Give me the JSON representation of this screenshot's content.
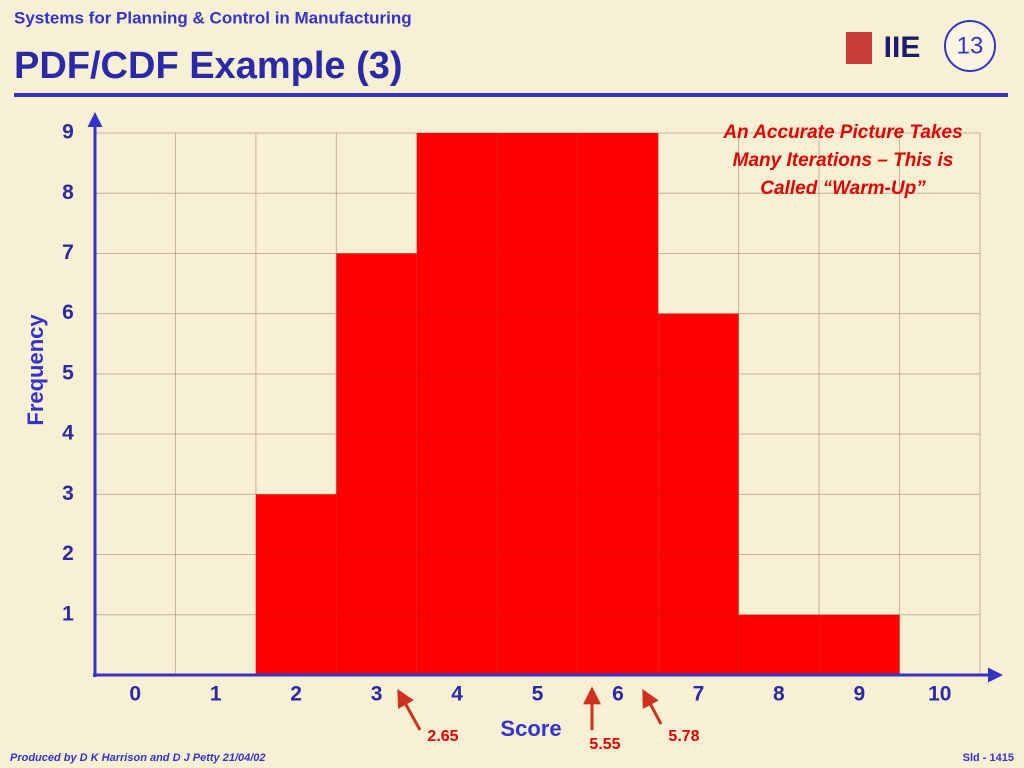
{
  "header": {
    "subtitle": "Systems for Planning & Control in Manufacturing",
    "title": "PDF/CDF Example (3)",
    "logo": "IIE",
    "page_number": "13"
  },
  "chart_data": {
    "type": "bar",
    "x_label": "Score",
    "y_label": "Frequency",
    "categories": [
      "0",
      "1",
      "2",
      "3",
      "4",
      "5",
      "6",
      "7",
      "8",
      "9",
      "10"
    ],
    "values": [
      0,
      0,
      3,
      7,
      9,
      9,
      9,
      6,
      1,
      1,
      0
    ],
    "color": "#ff0000",
    "ylim": [
      0,
      9
    ],
    "yticks": [
      1,
      2,
      3,
      4,
      5,
      6,
      7,
      8,
      9
    ],
    "grid": true,
    "annotations": [
      "An Accurate Picture Takes",
      "Many Iterations – This is",
      "Called “Warm-Up”"
    ],
    "markers": [
      "2.65",
      "5.55",
      "5.78"
    ]
  },
  "footer": {
    "credit": "Produced by D K Harrison and D J Petty 21/04/02",
    "slide": "Sld - 1415"
  }
}
